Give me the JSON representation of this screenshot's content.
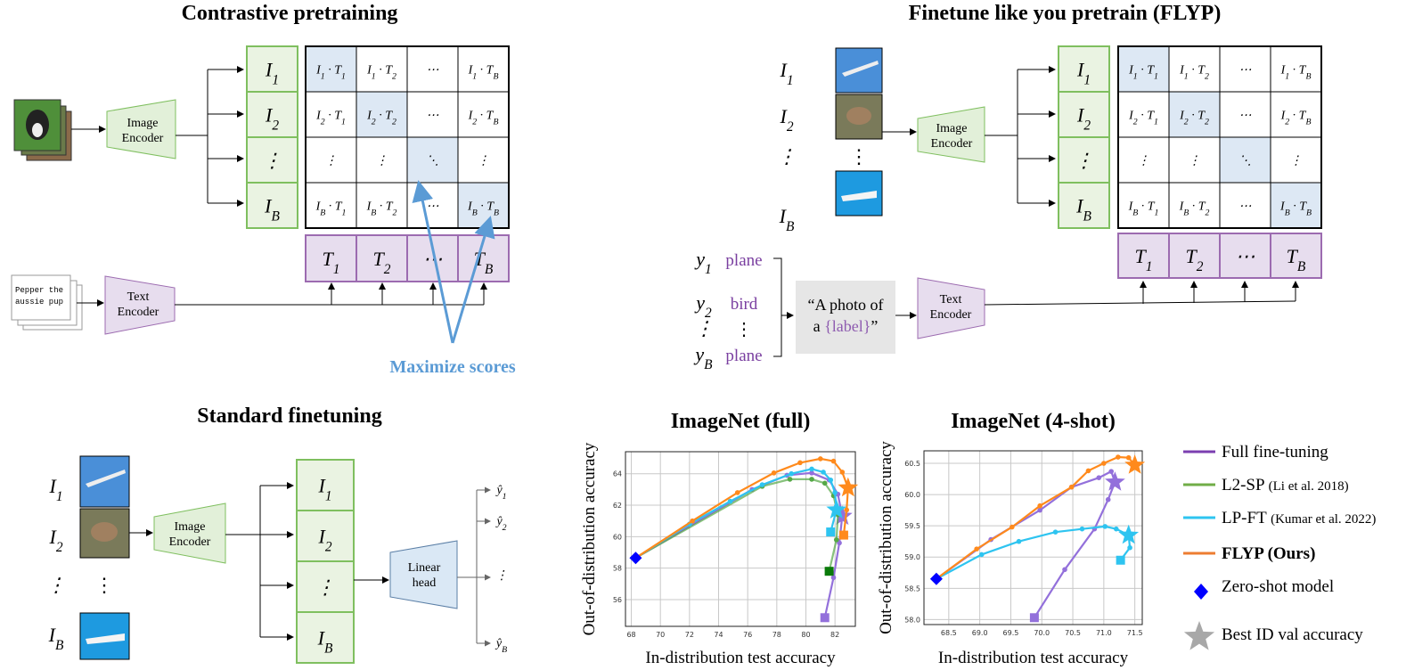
{
  "contrastive": {
    "title": "Contrastive pretraining",
    "image_encoder": [
      "Image",
      "Encoder"
    ],
    "text_encoder": [
      "Text",
      "Encoder"
    ],
    "caption_text": [
      "Pepper the",
      "aussie pup"
    ],
    "i_boxes": [
      "I_1",
      "I_2",
      "⋮",
      "I_B"
    ],
    "t_boxes": [
      "T_1",
      "T_2",
      "⋯",
      "T_B"
    ],
    "matrix": [
      [
        "I_1 · T_1",
        "I_1 · T_2",
        "⋯",
        "I_1 · T_B"
      ],
      [
        "I_2 · T_1",
        "I_2 · T_2",
        "⋯",
        "I_2 · T_B"
      ],
      [
        "⋮",
        "⋮",
        "⋱",
        "⋮"
      ],
      [
        "I_B · T_1",
        "I_B · T_2",
        "⋯",
        "I_B · T_B"
      ]
    ],
    "annotation": "Maximize scores"
  },
  "flyp": {
    "title": "Finetune like you pretrain (FLYP)",
    "image_labels": [
      "I_1",
      "I_2",
      "⋮",
      "I_B"
    ],
    "image_encoder": [
      "Image",
      "Encoder"
    ],
    "text_encoder": [
      "Text",
      "Encoder"
    ],
    "i_boxes": [
      "I_1",
      "I_2",
      "⋮",
      "I_B"
    ],
    "t_boxes": [
      "T_1",
      "T_2",
      "⋯",
      "T_B"
    ],
    "matrix": [
      [
        "I_1 · T_1",
        "I_1 · T_2",
        "⋯",
        "I_1 · T_B"
      ],
      [
        "I_2 · T_1",
        "I_2 · T_2",
        "⋯",
        "I_2 · T_B"
      ],
      [
        "⋮",
        "⋮",
        "⋱",
        "⋮"
      ],
      [
        "I_B · T_1",
        "I_B · T_2",
        "⋯",
        "I_B · T_B"
      ]
    ],
    "labels": [
      {
        "y": "y_1",
        "name": "plane"
      },
      {
        "y": "y_2",
        "name": "bird"
      },
      {
        "y": "⋮",
        "name": ""
      },
      {
        "y": "y_B",
        "name": "plane"
      }
    ],
    "template": [
      "“A photo of",
      "a ",
      "{label}",
      "”"
    ]
  },
  "standard": {
    "title": "Standard finetuning",
    "image_labels": [
      "I_1",
      "I_2",
      "⋮",
      "I_B"
    ],
    "image_encoder": [
      "Image",
      "Encoder"
    ],
    "i_boxes": [
      "I_1",
      "I_2",
      "⋮",
      "I_B"
    ],
    "linear_head": [
      "Linear",
      "head"
    ],
    "outputs": [
      "ŷ_1",
      "ŷ_2",
      "⋮",
      "ŷ_B"
    ]
  },
  "colors": {
    "full_ft": "#9370db",
    "l2sp": "#55a846",
    "lpft": "#2ec4f0",
    "flyp": "#ff8a1c",
    "zero_shot": "#0000ff",
    "star": "#a8a8a8",
    "green_box": "#eaf3e2",
    "purple_box": "#e7ddee",
    "diag": "#dde8f4",
    "maximize": "#5b9bd5"
  },
  "legend": [
    {
      "label": "Full fine-tuning",
      "ref": "",
      "color": "#7b3fb0"
    },
    {
      "label": "L2-SP",
      "ref": "(Li et al. 2018)",
      "color": "#70ad47"
    },
    {
      "label": "LP-FT",
      "ref": "(Kumar et al. 2022)",
      "color": "#2ec4f0"
    },
    {
      "label": "FLYP (Ours)",
      "ref": "",
      "color": "#ed7d31",
      "bold": true
    },
    {
      "label": "Zero-shot model",
      "ref": "",
      "marker": "diamond"
    },
    {
      "label": "Best ID val accuracy",
      "ref": "",
      "marker": "star"
    }
  ],
  "chart_data": [
    {
      "type": "line",
      "title": "ImageNet (full)",
      "xlabel": "In-distribution test accuracy",
      "ylabel": "Out-of-distribution accuracy",
      "xlim": [
        67.6,
        83.4
      ],
      "ylim": [
        54.3,
        65.4
      ],
      "xticks": [
        68,
        70,
        72,
        74,
        76,
        78,
        80,
        82
      ],
      "yticks": [
        56,
        58,
        60,
        62,
        64
      ],
      "grid": true,
      "series": [
        {
          "name": "Full fine-tuning",
          "color": "#9370db",
          "points": [
            [
              68.3,
              58.65
            ],
            [
              76.3,
              63.0
            ],
            [
              78.7,
              63.9
            ],
            [
              80.4,
              64.05
            ],
            [
              81.6,
              63.6
            ],
            [
              82.2,
              62.7
            ],
            [
              82.5,
              61.3
            ],
            [
              82.3,
              59.6
            ],
            [
              81.9,
              57.4
            ],
            [
              81.3,
              54.85
            ]
          ],
          "best": [
            82.5,
            61.3
          ]
        },
        {
          "name": "L2-SP",
          "color": "#55a846",
          "points": [
            [
              68.3,
              58.65
            ],
            [
              77.0,
              63.2
            ],
            [
              78.9,
              63.65
            ],
            [
              80.4,
              63.65
            ],
            [
              81.3,
              63.4
            ],
            [
              81.9,
              62.6
            ],
            [
              82.2,
              61.4
            ],
            [
              82.1,
              59.8
            ],
            [
              81.6,
              57.8
            ]
          ],
          "best": null
        },
        {
          "name": "LP-FT",
          "color": "#2ec4f0",
          "points": [
            [
              68.3,
              58.65
            ],
            [
              72.0,
              60.8
            ],
            [
              74.8,
              62.25
            ],
            [
              77.0,
              63.3
            ],
            [
              79.0,
              64.0
            ],
            [
              80.4,
              64.3
            ],
            [
              81.2,
              64.1
            ],
            [
              81.7,
              63.6
            ],
            [
              82.0,
              62.8
            ],
            [
              82.1,
              61.7
            ],
            [
              81.7,
              60.3
            ]
          ],
          "best": [
            82.1,
            61.7
          ]
        },
        {
          "name": "FLYP (Ours)",
          "color": "#ff8a1c",
          "points": [
            [
              68.3,
              58.65
            ],
            [
              72.2,
              61.0
            ],
            [
              75.3,
              62.8
            ],
            [
              77.8,
              64.05
            ],
            [
              79.6,
              64.7
            ],
            [
              81.0,
              64.95
            ],
            [
              81.9,
              64.8
            ],
            [
              82.5,
              64.1
            ],
            [
              82.9,
              63.1
            ],
            [
              82.8,
              61.7
            ],
            [
              82.6,
              60.1
            ]
          ],
          "best": [
            82.9,
            63.1
          ]
        }
      ],
      "zero_shot": [
        68.3,
        58.65
      ]
    },
    {
      "type": "line",
      "title": "ImageNet (4-shot)",
      "xlabel": "In-distribution test accuracy",
      "ylabel": "Out-of-distribution accuracy",
      "xlim": [
        68.1,
        71.62
      ],
      "ylim": [
        57.92,
        60.7
      ],
      "xticks": [
        68.5,
        69.0,
        69.5,
        70.0,
        70.5,
        71.0,
        71.5
      ],
      "yticks": [
        58.0,
        58.5,
        59.0,
        59.5,
        60.0,
        60.5
      ],
      "grid": true,
      "series": [
        {
          "name": "Full fine-tuning",
          "color": "#9370db",
          "points": [
            [
              68.3,
              58.65
            ],
            [
              69.18,
              59.28
            ],
            [
              69.97,
              59.75
            ],
            [
              70.48,
              60.12
            ],
            [
              70.92,
              60.27
            ],
            [
              71.12,
              60.37
            ],
            [
              71.18,
              60.2
            ],
            [
              71.07,
              59.92
            ],
            [
              70.85,
              59.45
            ],
            [
              70.37,
              58.8
            ],
            [
              69.88,
              58.03
            ]
          ],
          "best": [
            71.18,
            60.2
          ]
        },
        {
          "name": "LP-FT",
          "color": "#2ec4f0",
          "points": [
            [
              68.3,
              58.65
            ],
            [
              69.03,
              59.04
            ],
            [
              69.63,
              59.25
            ],
            [
              70.22,
              59.4
            ],
            [
              70.65,
              59.45
            ],
            [
              71.02,
              59.49
            ],
            [
              71.2,
              59.45
            ],
            [
              71.4,
              59.35
            ],
            [
              71.42,
              59.15
            ],
            [
              71.27,
              58.95
            ]
          ],
          "best": [
            71.4,
            59.35
          ]
        },
        {
          "name": "FLYP (Ours)",
          "color": "#ff8a1c",
          "points": [
            [
              68.3,
              58.65
            ],
            [
              68.95,
              59.13
            ],
            [
              69.52,
              59.48
            ],
            [
              69.97,
              59.82
            ],
            [
              70.48,
              60.12
            ],
            [
              70.75,
              60.38
            ],
            [
              71.0,
              60.5
            ],
            [
              71.23,
              60.6
            ],
            [
              71.4,
              60.59
            ],
            [
              71.5,
              60.47
            ]
          ],
          "best": [
            71.5,
            60.47
          ]
        }
      ],
      "zero_shot": [
        68.3,
        58.65
      ]
    }
  ]
}
